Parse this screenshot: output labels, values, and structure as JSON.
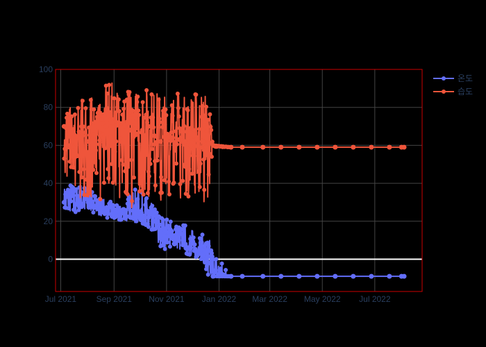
{
  "chart_data": {
    "type": "line",
    "title": "",
    "xlabel": "",
    "ylabel": "",
    "xlim": [
      "2021-06-25",
      "2022-08-25"
    ],
    "ylim": [
      -17,
      100
    ],
    "grid": true,
    "legend": "top-right",
    "colors": {
      "background": "#000000",
      "frame": "#cc0000",
      "grid": "#444444",
      "zeroline": "#ffffff",
      "text": "#2a3f5f"
    },
    "x_ticks": [
      {
        "date": "2021-07-01",
        "label": "Jul 2021"
      },
      {
        "date": "2021-09-01",
        "label": "Sep 2021"
      },
      {
        "date": "2021-11-01",
        "label": "Nov 2021"
      },
      {
        "date": "2022-01-01",
        "label": "Jan 2022"
      },
      {
        "date": "2022-03-01",
        "label": "Mar 2022"
      },
      {
        "date": "2022-05-01",
        "label": "May 2022"
      },
      {
        "date": "2022-07-01",
        "label": "Jul 2022"
      }
    ],
    "y_ticks": [
      0,
      20,
      40,
      60,
      80,
      100
    ],
    "series": [
      {
        "name": "온도",
        "color": "#636efa",
        "x": [
          "2021-07-05",
          "2021-07-12",
          "2021-07-19",
          "2021-07-26",
          "2021-08-02",
          "2021-08-09",
          "2021-08-16",
          "2021-08-23",
          "2021-08-30",
          "2021-09-06",
          "2021-09-13",
          "2021-09-20",
          "2021-09-27",
          "2021-10-04",
          "2021-10-11",
          "2021-10-18",
          "2021-10-25",
          "2021-11-01",
          "2021-11-08",
          "2021-11-15",
          "2021-11-22",
          "2021-11-29",
          "2021-12-06",
          "2021-12-13",
          "2021-12-20",
          "2021-12-25",
          "2022-01-15",
          "2022-01-28",
          "2022-02-21",
          "2022-03-14",
          "2022-04-04",
          "2022-04-25",
          "2022-05-16",
          "2022-06-06",
          "2022-06-27",
          "2022-07-18",
          "2022-08-01",
          "2022-08-04"
        ],
        "y": [
          30,
          33,
          29,
          35,
          30,
          28,
          27,
          25,
          24,
          23,
          24,
          22,
          24,
          23,
          22,
          20,
          14,
          12,
          11,
          10,
          8,
          6,
          4,
          2,
          -2,
          -9,
          -9,
          -9,
          -9,
          -9,
          -9,
          -9,
          -9,
          -9,
          -9,
          -9,
          -9,
          -9
        ],
        "y_low": [
          25,
          25,
          24,
          26,
          26,
          24,
          23,
          22,
          21,
          21,
          20,
          19,
          19,
          18,
          17,
          13,
          5,
          3,
          5,
          5,
          3,
          2,
          1,
          -1,
          -9,
          -9,
          -9,
          -9,
          -9,
          -9,
          -9,
          -9,
          -9,
          -9,
          -9,
          -9,
          -9,
          -9
        ],
        "y_high": [
          38,
          40,
          38,
          40,
          36,
          35,
          33,
          31,
          30,
          28,
          29,
          36,
          37,
          35,
          32,
          27,
          24,
          22,
          20,
          18,
          19,
          16,
          15,
          13,
          12,
          6,
          -9,
          -9,
          -9,
          -9,
          -9,
          -9,
          -9,
          -9,
          -9,
          -9,
          -9,
          -9
        ]
      },
      {
        "name": "습도",
        "color": "#ef553b",
        "x": [
          "2021-07-05",
          "2021-07-12",
          "2021-07-19",
          "2021-07-26",
          "2021-08-02",
          "2021-08-09",
          "2021-08-16",
          "2021-08-23",
          "2021-08-30",
          "2021-09-06",
          "2021-09-13",
          "2021-09-20",
          "2021-09-27",
          "2021-10-04",
          "2021-10-11",
          "2021-10-18",
          "2021-10-25",
          "2021-11-01",
          "2021-11-08",
          "2021-11-15",
          "2021-11-22",
          "2021-11-29",
          "2021-12-06",
          "2021-12-13",
          "2021-12-20",
          "2021-12-25",
          "2022-01-15",
          "2022-01-28",
          "2022-02-21",
          "2022-03-14",
          "2022-04-04",
          "2022-04-25",
          "2022-05-16",
          "2022-06-06",
          "2022-06-27",
          "2022-07-18",
          "2022-08-01",
          "2022-08-04"
        ],
        "y": [
          70,
          60,
          55,
          65,
          62,
          68,
          65,
          70,
          72,
          72,
          70,
          68,
          66,
          68,
          70,
          65,
          62,
          63,
          64,
          63,
          62,
          60,
          63,
          62,
          61,
          60,
          59,
          59,
          59,
          59,
          59,
          59,
          59,
          59,
          59,
          59,
          59,
          59
        ],
        "y_low": [
          42,
          45,
          25,
          30,
          28,
          33,
          30,
          36,
          40,
          30,
          28,
          25,
          28,
          30,
          28,
          25,
          27,
          35,
          33,
          30,
          32,
          28,
          30,
          26,
          30,
          59,
          59,
          59,
          59,
          59,
          59,
          59,
          59,
          59,
          59,
          59,
          59,
          59
        ],
        "y_high": [
          82,
          80,
          78,
          86,
          88,
          84,
          82,
          92,
          93,
          90,
          88,
          90,
          89,
          91,
          90,
          89,
          88,
          87,
          88,
          89,
          86,
          88,
          89,
          90,
          86,
          60,
          59,
          59,
          59,
          59,
          59,
          59,
          59,
          59,
          59,
          59,
          59,
          59
        ]
      }
    ]
  }
}
